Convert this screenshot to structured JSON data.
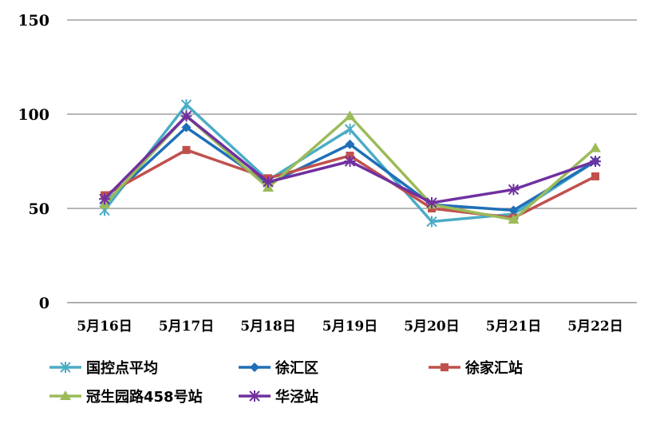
{
  "chart_data": {
    "type": "line",
    "title": "",
    "xlabel": "",
    "ylabel": "",
    "ylim": [
      0,
      150
    ],
    "yticks": [
      "0",
      "50",
      "100",
      "150"
    ],
    "grid": true,
    "legend_position": "bottom",
    "categories": [
      "5月16日",
      "5月17日",
      "5月18日",
      "5月19日",
      "5月20日",
      "5月21日",
      "5月22日"
    ],
    "series": [
      {
        "name": "国控点平均",
        "color": "#4bacc6",
        "marker": "star",
        "values": [
          49,
          105,
          65,
          92,
          43,
          47,
          75
        ]
      },
      {
        "name": "徐汇区",
        "color": "#1f6fb8",
        "marker": "diamond",
        "values": [
          53,
          93,
          63,
          84,
          52,
          49,
          75
        ]
      },
      {
        "name": "徐家汇站",
        "color": "#c0504d",
        "marker": "square",
        "values": [
          57,
          81,
          66,
          78,
          50,
          45,
          67
        ]
      },
      {
        "name": "冠生园路458号站",
        "color": "#9bbb59",
        "marker": "triangle",
        "values": [
          52,
          99,
          61,
          99,
          52,
          44,
          82
        ]
      },
      {
        "name": "华泾站",
        "color": "#7030a0",
        "marker": "asterisk",
        "values": [
          55,
          99,
          64,
          75,
          53,
          60,
          75
        ]
      }
    ]
  }
}
